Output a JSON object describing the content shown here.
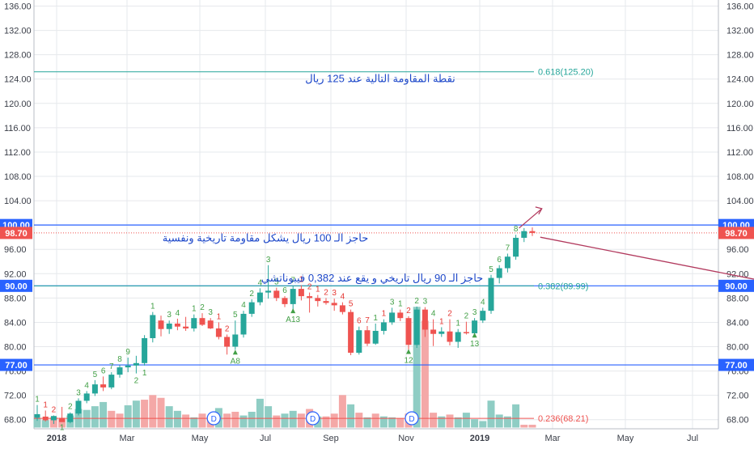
{
  "chart_data": {
    "type": "candlestick",
    "x_ticks": [
      "2018",
      "Mar",
      "May",
      "Jul",
      "Sep",
      "Nov",
      "2019",
      "Mar",
      "May",
      "Jul"
    ],
    "y_ticks": [
      "136.00",
      "132.00",
      "128.00",
      "124.00",
      "120.00",
      "116.00",
      "112.00",
      "108.00",
      "104.00",
      "100.00",
      "96.00",
      "92.00",
      "88.00",
      "84.00",
      "80.00",
      "76.00",
      "72.00",
      "68.00"
    ],
    "ylim": [
      66.5,
      137
    ],
    "grid": true,
    "candles": [
      {
        "o": 68.3,
        "h": 70.4,
        "l": 67.8,
        "c": 68.9
      },
      {
        "o": 68.5,
        "h": 69.5,
        "l": 67.7,
        "c": 67.9
      },
      {
        "o": 67.9,
        "h": 68.7,
        "l": 67.3,
        "c": 68.6
      },
      {
        "o": 68.3,
        "h": 70.1,
        "l": 67.9,
        "c": 67.6
      },
      {
        "o": 67.6,
        "h": 69.2,
        "l": 67.4,
        "c": 69.0
      },
      {
        "o": 69.0,
        "h": 71.5,
        "l": 68.7,
        "c": 71.1
      },
      {
        "o": 71.1,
        "h": 72.7,
        "l": 70.7,
        "c": 72.3
      },
      {
        "o": 72.3,
        "h": 74.5,
        "l": 71.9,
        "c": 73.8
      },
      {
        "o": 73.8,
        "h": 75.1,
        "l": 72.7,
        "c": 73.3
      },
      {
        "o": 73.3,
        "h": 75.8,
        "l": 73.0,
        "c": 75.4
      },
      {
        "o": 75.4,
        "h": 77.0,
        "l": 74.9,
        "c": 76.6
      },
      {
        "o": 76.6,
        "h": 78.2,
        "l": 75.8,
        "c": 76.9
      },
      {
        "o": 76.9,
        "h": 78.5,
        "l": 75.6,
        "c": 77.3
      },
      {
        "o": 77.3,
        "h": 81.9,
        "l": 76.9,
        "c": 81.4
      },
      {
        "o": 81.4,
        "h": 85.7,
        "l": 80.7,
        "c": 85.2
      },
      {
        "o": 84.3,
        "h": 85.1,
        "l": 81.7,
        "c": 82.9
      },
      {
        "o": 82.9,
        "h": 84.3,
        "l": 82.1,
        "c": 83.8
      },
      {
        "o": 83.8,
        "h": 84.6,
        "l": 82.7,
        "c": 83.3
      },
      {
        "o": 83.3,
        "h": 84.9,
        "l": 82.6,
        "c": 83.0
      },
      {
        "o": 83.0,
        "h": 85.3,
        "l": 82.5,
        "c": 84.7
      },
      {
        "o": 84.7,
        "h": 85.5,
        "l": 83.4,
        "c": 83.6
      },
      {
        "o": 84.3,
        "h": 84.7,
        "l": 82.9,
        "c": 83.0
      },
      {
        "o": 83.0,
        "h": 84.0,
        "l": 81.2,
        "c": 81.6
      },
      {
        "o": 81.6,
        "h": 82.0,
        "l": 78.7,
        "c": 80.0
      },
      {
        "o": 80.0,
        "h": 84.3,
        "l": 79.5,
        "c": 82.0
      },
      {
        "o": 82.0,
        "h": 85.9,
        "l": 81.5,
        "c": 85.4
      },
      {
        "o": 85.4,
        "h": 87.8,
        "l": 84.9,
        "c": 87.3
      },
      {
        "o": 87.3,
        "h": 89.6,
        "l": 86.8,
        "c": 88.9
      },
      {
        "o": 88.9,
        "h": 93.4,
        "l": 87.9,
        "c": 89.2
      },
      {
        "o": 89.2,
        "h": 89.7,
        "l": 87.5,
        "c": 88.0
      },
      {
        "o": 88.0,
        "h": 88.3,
        "l": 86.5,
        "c": 87.0
      },
      {
        "o": 87.0,
        "h": 90.0,
        "l": 86.1,
        "c": 89.5
      },
      {
        "o": 89.5,
        "h": 90.1,
        "l": 87.6,
        "c": 88.3
      },
      {
        "o": 88.3,
        "h": 88.9,
        "l": 85.6,
        "c": 88.0
      },
      {
        "o": 88.0,
        "h": 88.5,
        "l": 86.6,
        "c": 87.5
      },
      {
        "o": 87.5,
        "h": 88.0,
        "l": 86.9,
        "c": 87.2
      },
      {
        "o": 87.2,
        "h": 87.9,
        "l": 85.9,
        "c": 86.8
      },
      {
        "o": 86.8,
        "h": 87.3,
        "l": 85.3,
        "c": 85.7
      },
      {
        "o": 85.7,
        "h": 86.1,
        "l": 78.6,
        "c": 79.0
      },
      {
        "o": 79.0,
        "h": 83.3,
        "l": 78.7,
        "c": 82.7
      },
      {
        "o": 82.7,
        "h": 83.4,
        "l": 80.1,
        "c": 80.5
      },
      {
        "o": 80.5,
        "h": 83.8,
        "l": 80.3,
        "c": 82.6
      },
      {
        "o": 82.6,
        "h": 84.5,
        "l": 82.0,
        "c": 84.0
      },
      {
        "o": 84.0,
        "h": 86.4,
        "l": 83.6,
        "c": 85.6
      },
      {
        "o": 85.6,
        "h": 86.1,
        "l": 84.2,
        "c": 84.7
      },
      {
        "o": 84.7,
        "h": 85.0,
        "l": 79.5,
        "c": 80.3
      },
      {
        "o": 80.3,
        "h": 86.6,
        "l": 79.8,
        "c": 86.1
      },
      {
        "o": 86.1,
        "h": 86.5,
        "l": 81.6,
        "c": 82.8
      },
      {
        "o": 82.8,
        "h": 84.5,
        "l": 80.1,
        "c": 82.1
      },
      {
        "o": 82.1,
        "h": 83.2,
        "l": 81.6,
        "c": 82.5
      },
      {
        "o": 82.5,
        "h": 84.5,
        "l": 80.2,
        "c": 80.8
      },
      {
        "o": 80.8,
        "h": 82.9,
        "l": 79.8,
        "c": 82.4
      },
      {
        "o": 82.4,
        "h": 84.1,
        "l": 82.0,
        "c": 82.2
      },
      {
        "o": 82.2,
        "h": 84.7,
        "l": 81.8,
        "c": 84.3
      },
      {
        "o": 84.3,
        "h": 86.4,
        "l": 83.9,
        "c": 85.9
      },
      {
        "o": 85.9,
        "h": 91.8,
        "l": 85.4,
        "c": 91.3
      },
      {
        "o": 91.3,
        "h": 93.4,
        "l": 90.4,
        "c": 92.9
      },
      {
        "o": 92.9,
        "h": 95.3,
        "l": 92.2,
        "c": 94.8
      },
      {
        "o": 94.8,
        "h": 98.4,
        "l": 94.3,
        "c": 97.9
      },
      {
        "o": 97.9,
        "h": 99.5,
        "l": 97.2,
        "c": 99.0
      },
      {
        "o": 99.0,
        "h": 99.6,
        "l": 98.2,
        "c": 98.7
      }
    ],
    "volume_bars": [
      {
        "v": 0.2,
        "up": true
      },
      {
        "v": 0.16,
        "up": true
      },
      {
        "v": 0.22,
        "up": false
      },
      {
        "v": 0.18,
        "up": false
      },
      {
        "v": 0.26,
        "up": true
      },
      {
        "v": 0.4,
        "up": true
      },
      {
        "v": 0.38,
        "up": true
      },
      {
        "v": 0.46,
        "up": true
      },
      {
        "v": 0.55,
        "up": true
      },
      {
        "v": 0.36,
        "up": false
      },
      {
        "v": 0.3,
        "up": false
      },
      {
        "v": 0.48,
        "up": true
      },
      {
        "v": 0.58,
        "up": true
      },
      {
        "v": 0.6,
        "up": false
      },
      {
        "v": 0.7,
        "up": false
      },
      {
        "v": 0.64,
        "up": false
      },
      {
        "v": 0.46,
        "up": true
      },
      {
        "v": 0.36,
        "up": true
      },
      {
        "v": 0.28,
        "up": false
      },
      {
        "v": 0.22,
        "up": true
      },
      {
        "v": 0.3,
        "up": false
      },
      {
        "v": 0.24,
        "up": false
      },
      {
        "v": 0.42,
        "up": true
      },
      {
        "v": 0.3,
        "up": false
      },
      {
        "v": 0.34,
        "up": false
      },
      {
        "v": 0.26,
        "up": true
      },
      {
        "v": 0.34,
        "up": true
      },
      {
        "v": 0.62,
        "up": true
      },
      {
        "v": 0.46,
        "up": true
      },
      {
        "v": 0.26,
        "up": false
      },
      {
        "v": 0.3,
        "up": true
      },
      {
        "v": 0.36,
        "up": true
      },
      {
        "v": 0.3,
        "up": false
      },
      {
        "v": 0.4,
        "up": false
      },
      {
        "v": 0.24,
        "up": true
      },
      {
        "v": 0.24,
        "up": false
      },
      {
        "v": 0.3,
        "up": false
      },
      {
        "v": 0.7,
        "up": false
      },
      {
        "v": 0.5,
        "up": true
      },
      {
        "v": 0.32,
        "up": false
      },
      {
        "v": 0.22,
        "up": true
      },
      {
        "v": 0.3,
        "up": false
      },
      {
        "v": 0.24,
        "up": true
      },
      {
        "v": 0.22,
        "up": true
      },
      {
        "v": 0.2,
        "up": false
      },
      {
        "v": 0.3,
        "up": false
      },
      {
        "v": 2.6,
        "up": true
      },
      {
        "v": 2.3,
        "up": false
      },
      {
        "v": 0.32,
        "up": false
      },
      {
        "v": 0.24,
        "up": true
      },
      {
        "v": 0.28,
        "up": false
      },
      {
        "v": 0.22,
        "up": true
      },
      {
        "v": 0.32,
        "up": true
      },
      {
        "v": 0.18,
        "up": true
      },
      {
        "v": 0.14,
        "up": true
      },
      {
        "v": 0.58,
        "up": true
      },
      {
        "v": 0.28,
        "up": true
      },
      {
        "v": 0.24,
        "up": true
      },
      {
        "v": 0.5,
        "up": true
      },
      {
        "v": 0.06,
        "up": false
      },
      {
        "v": 0.06,
        "up": false
      }
    ],
    "count_labels": [
      {
        "i": 0,
        "t": "1",
        "pos": "above",
        "up": true
      },
      {
        "i": 1,
        "t": "1",
        "pos": "above",
        "up": false
      },
      {
        "i": 2,
        "t": "2",
        "pos": "above",
        "up": false
      },
      {
        "i": 3,
        "t": "1",
        "pos": "below",
        "up": true
      },
      {
        "i": 4,
        "t": "2",
        "pos": "above",
        "up": true
      },
      {
        "i": 5,
        "t": "3",
        "pos": "above",
        "up": true
      },
      {
        "i": 6,
        "t": "4",
        "pos": "above",
        "up": true
      },
      {
        "i": 7,
        "t": "5",
        "pos": "above",
        "up": true
      },
      {
        "i": 8,
        "t": "6",
        "pos": "above",
        "up": true
      },
      {
        "i": 9,
        "t": "7",
        "pos": "above",
        "up": true
      },
      {
        "i": 10,
        "t": "8",
        "pos": "above",
        "up": true
      },
      {
        "i": 11,
        "t": "9",
        "pos": "above",
        "up": true
      },
      {
        "i": 12,
        "t": "2",
        "pos": "below",
        "up": true
      },
      {
        "i": 13,
        "t": "1",
        "pos": "below",
        "up": true
      },
      {
        "i": 14,
        "t": "1",
        "pos": "above",
        "up": true
      },
      {
        "i": 16,
        "t": "3",
        "pos": "above",
        "up": true
      },
      {
        "i": 17,
        "t": "4",
        "pos": "above",
        "up": true
      },
      {
        "i": 19,
        "t": "1",
        "pos": "above",
        "up": true
      },
      {
        "i": 20,
        "t": "2",
        "pos": "above",
        "up": true
      },
      {
        "i": 21,
        "t": "3",
        "pos": "above",
        "up": true
      },
      {
        "i": 22,
        "t": "1",
        "pos": "above",
        "up": false
      },
      {
        "i": 23,
        "t": "2",
        "pos": "above",
        "up": false
      },
      {
        "i": 24,
        "t": "5",
        "pos": "above",
        "up": true
      },
      {
        "i": 25,
        "t": "4",
        "pos": "above",
        "up": true
      },
      {
        "i": 26,
        "t": "2",
        "pos": "above",
        "up": true
      },
      {
        "i": 27,
        "t": "4",
        "pos": "above",
        "up": true
      },
      {
        "i": 28,
        "t": "3",
        "pos": "above",
        "up": true
      },
      {
        "i": 29,
        "t": "5",
        "pos": "above",
        "up": true
      },
      {
        "i": 30,
        "t": "6",
        "pos": "above",
        "up": true
      },
      {
        "i": 31,
        "t": "7",
        "pos": "above",
        "up": true
      },
      {
        "i": 32,
        "t": "1",
        "pos": "above",
        "up": false
      },
      {
        "i": 33,
        "t": "2",
        "pos": "above",
        "up": false
      },
      {
        "i": 34,
        "t": "1",
        "pos": "above",
        "up": false
      },
      {
        "i": 35,
        "t": "2",
        "pos": "above",
        "up": false
      },
      {
        "i": 36,
        "t": "3",
        "pos": "above",
        "up": false
      },
      {
        "i": 37,
        "t": "4",
        "pos": "above",
        "up": false
      },
      {
        "i": 38,
        "t": "5",
        "pos": "above",
        "up": false
      },
      {
        "i": 39,
        "t": "6",
        "pos": "above",
        "up": false
      },
      {
        "i": 40,
        "t": "7",
        "pos": "above",
        "up": false
      },
      {
        "i": 41,
        "t": "1",
        "pos": "above",
        "up": true
      },
      {
        "i": 42,
        "t": "1",
        "pos": "above",
        "up": false
      },
      {
        "i": 43,
        "t": "3",
        "pos": "above",
        "up": true
      },
      {
        "i": 44,
        "t": "1",
        "pos": "above",
        "up": true
      },
      {
        "i": 45,
        "t": "2",
        "pos": "above",
        "up": false
      },
      {
        "i": 46,
        "t": "2",
        "pos": "above",
        "up": true
      },
      {
        "i": 47,
        "t": "3",
        "pos": "above",
        "up": true
      },
      {
        "i": 48,
        "t": "4",
        "pos": "above",
        "up": true
      },
      {
        "i": 49,
        "t": "1",
        "pos": "above",
        "up": false
      },
      {
        "i": 50,
        "t": "2",
        "pos": "above",
        "up": false
      },
      {
        "i": 51,
        "t": "1",
        "pos": "above",
        "up": true
      },
      {
        "i": 52,
        "t": "2",
        "pos": "above",
        "up": true
      },
      {
        "i": 53,
        "t": "3",
        "pos": "above",
        "up": true
      },
      {
        "i": 54,
        "t": "4",
        "pos": "above",
        "up": true
      },
      {
        "i": 55,
        "t": "5",
        "pos": "above",
        "up": true
      },
      {
        "i": 56,
        "t": "6",
        "pos": "above",
        "up": true
      },
      {
        "i": 57,
        "t": "7",
        "pos": "above",
        "up": true
      },
      {
        "i": 58,
        "t": "8",
        "pos": "above",
        "up": true
      }
    ],
    "count13_labels": [
      {
        "i": 24,
        "t": "A8",
        "price": 79.5
      },
      {
        "i": 31,
        "t": "A13",
        "price": 86.3
      },
      {
        "i": 45,
        "t": "12",
        "price": 79.6
      },
      {
        "i": 53,
        "t": "13",
        "price": 82.3
      }
    ],
    "dividend_markers": [
      {
        "i": 21,
        "t": "D"
      },
      {
        "i": 33,
        "t": "D"
      },
      {
        "i": 45,
        "t": "D"
      }
    ],
    "horizontal_lines": [
      {
        "price": 125.2,
        "color": "#26a69a",
        "style": "solid",
        "label": "0.618(125.20)"
      },
      {
        "price": 100.0,
        "color": "#2962ff",
        "style": "solid",
        "label": "100.00"
      },
      {
        "price": 98.7,
        "color": "#ef5350",
        "style": "dotted",
        "label": "98.70"
      },
      {
        "price": 90.0,
        "color": "#2962ff",
        "style": "solid",
        "label": "90.00"
      },
      {
        "price": 89.99,
        "color": "#26a69a",
        "style": "solid",
        "label": "0.382(89.99)"
      },
      {
        "price": 77.0,
        "color": "#2962ff",
        "style": "solid",
        "label": "77.00"
      },
      {
        "price": 68.21,
        "color": "#ef5350",
        "style": "solid",
        "label": "0.236(68.21)"
      }
    ],
    "price_tags": [
      {
        "price": 100.0,
        "text": "100.00",
        "color": "#2962ff"
      },
      {
        "price": 98.7,
        "text": "98.70",
        "color": "#ef5350"
      },
      {
        "price": 90.0,
        "text": "90.00",
        "color": "#2962ff"
      },
      {
        "price": 77.0,
        "text": "77.00",
        "color": "#2962ff"
      }
    ],
    "annotations": [
      {
        "text": "نقطة المقاومة التالية عند 125 ريال",
        "price": 123.5
      },
      {
        "text": "حاجز الـ 100 ريال يشكل مقاومة تاريخية ونفسية",
        "price": 97.3
      },
      {
        "text": "حاجز الـ 90 ريال تاريخي و يقع عند 0,382 فيبوناتشي",
        "price": 90.7
      }
    ],
    "projection": {
      "path": [
        [
          99.0,
          102.7
        ],
        [
          91.0,
          90.0
        ],
        [
          101.5,
          108.0
        ]
      ],
      "dotted_to": [
        [
          107.0,
          125.0
        ]
      ]
    },
    "colors": {
      "up": "#26a69a",
      "down": "#ef5350",
      "up_volume": "#8fcdc4",
      "down_volume": "#f4a8a7",
      "grid": "#e6e8ec",
      "axis_text": "#3a3e48",
      "annotation": "#1c47c9",
      "arrow": "#b23a5e",
      "fib": "#26a69a",
      "count_up": "#43a047",
      "count_down": "#e53935"
    }
  }
}
